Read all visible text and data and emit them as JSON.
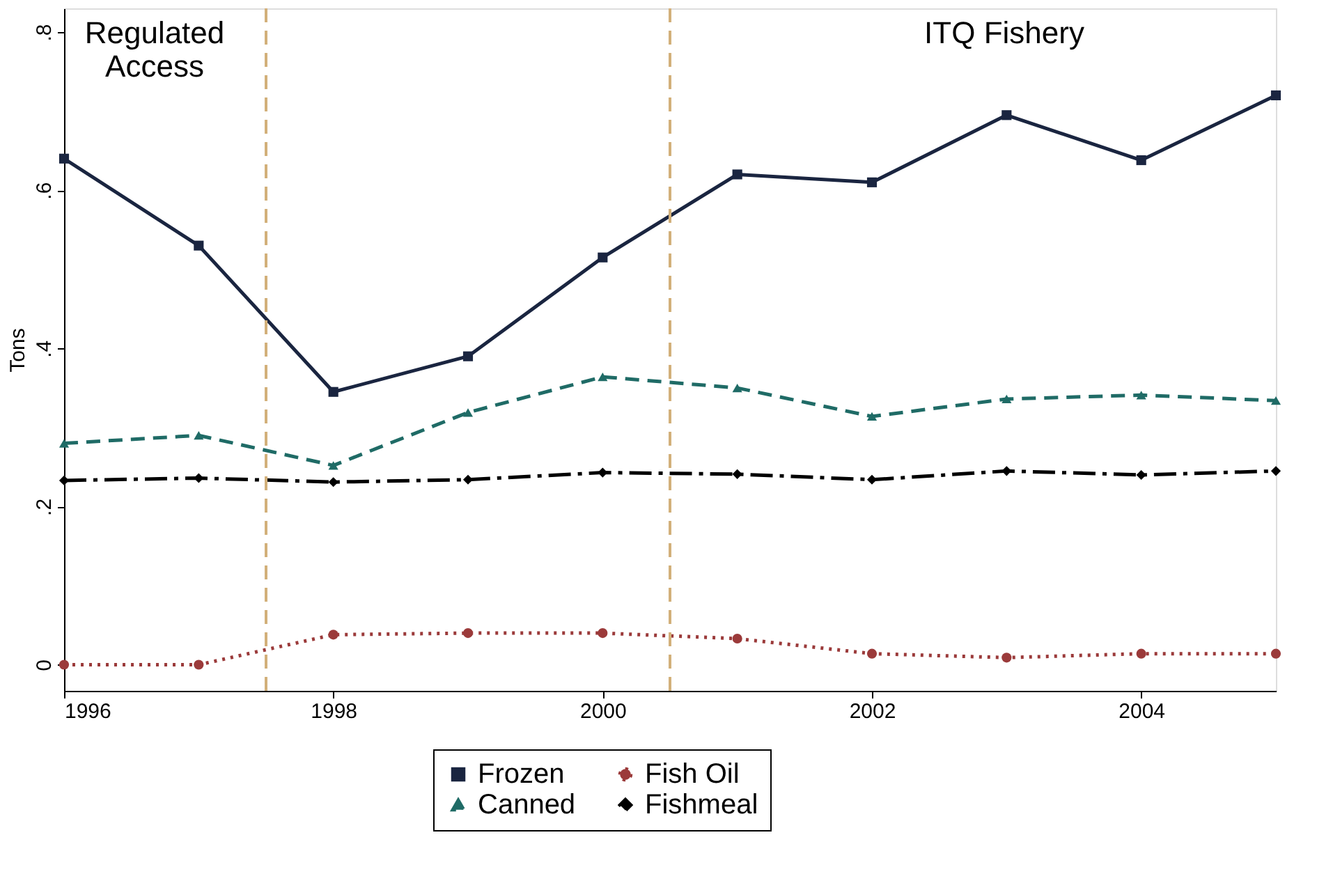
{
  "chart_data": {
    "type": "line",
    "ylabel": "Tons",
    "x": [
      1996,
      1997,
      1998,
      1999,
      2000,
      2001,
      2002,
      2003,
      2004,
      2005
    ],
    "xlim": [
      1996,
      2005
    ],
    "xticks": [
      1996,
      1998,
      2000,
      2002,
      2004
    ],
    "ylim": [
      -0.033,
      0.83
    ],
    "yticks": [
      0,
      {
        "value": 0.2,
        "label": ".2"
      },
      {
        "value": 0.4,
        "label": ".4"
      },
      {
        "value": 0.6,
        "label": ".6"
      },
      {
        "value": 0.8,
        "label": ".8"
      }
    ],
    "grid": false,
    "legend": "bottom",
    "series": [
      {
        "name": "Frozen",
        "color": "#1a2540",
        "marker": "square",
        "line_style": "solid",
        "values": [
          0.64,
          0.53,
          0.345,
          0.39,
          0.515,
          0.62,
          0.61,
          0.695,
          0.638,
          0.72
        ]
      },
      {
        "name": "Canned",
        "color": "#1f6b66",
        "marker": "triangle",
        "line_style": "dashed",
        "values": [
          0.28,
          0.29,
          0.252,
          0.319,
          0.364,
          0.35,
          0.314,
          0.336,
          0.341,
          0.334
        ]
      },
      {
        "name": "Fish Oil",
        "color": "#9b3a3a",
        "marker": "circle",
        "line_style": "dotted",
        "values": [
          0.0,
          0.0,
          0.038,
          0.04,
          0.04,
          0.033,
          0.014,
          0.009,
          0.014,
          0.014
        ]
      },
      {
        "name": "Fishmeal",
        "color": "#000000",
        "marker": "diamond",
        "line_style": "dashdot",
        "values": [
          0.233,
          0.236,
          0.231,
          0.234,
          0.243,
          0.241,
          0.234,
          0.245,
          0.24,
          0.245
        ]
      }
    ],
    "ref_lines": [
      {
        "axis": "x",
        "value": 1997.5,
        "color": "#d2b07a",
        "line_style": "dashed"
      },
      {
        "axis": "x",
        "value": 2000.5,
        "color": "#d2b07a",
        "line_style": "dashed"
      }
    ],
    "annotations": [
      "Regulated\nAccess",
      "ITQ Fishery"
    ]
  }
}
